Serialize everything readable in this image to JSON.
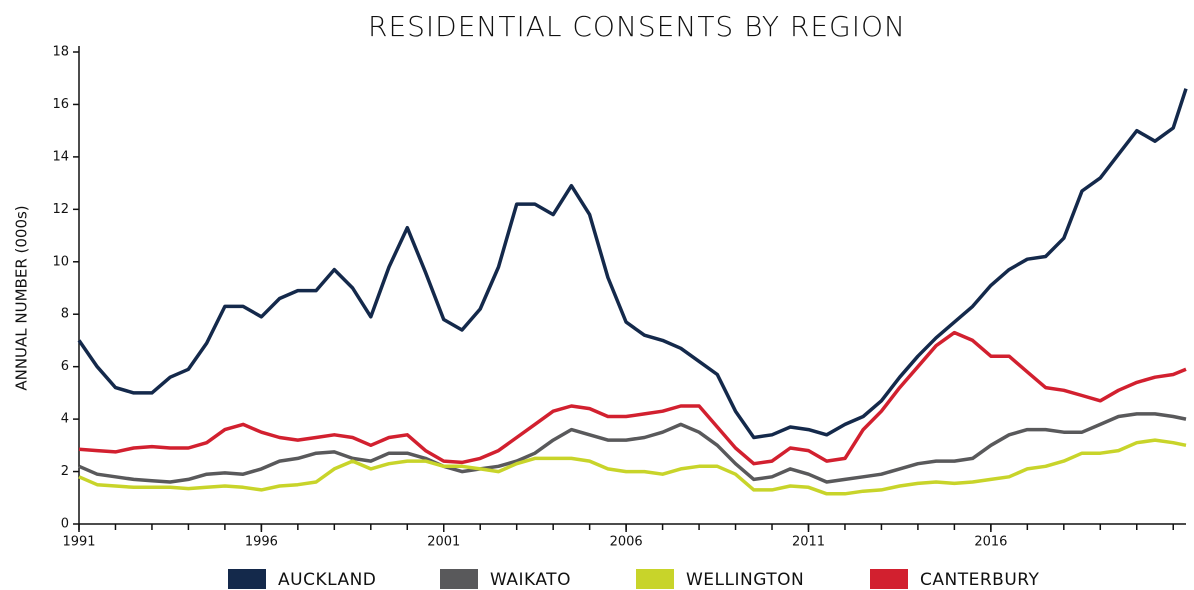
{
  "chart_data": {
    "type": "line",
    "title": "RESIDENTIAL CONSENTS BY REGION",
    "y_label": "ANNUAL NUMBER (000s)",
    "x": [
      1991,
      1991.5,
      1992,
      1992.5,
      1993,
      1993.5,
      1994,
      1994.5,
      1995,
      1995.5,
      1996,
      1996.5,
      1997,
      1997.5,
      1998,
      1998.5,
      1999,
      1999.5,
      2000,
      2000.5,
      2001,
      2001.5,
      2002,
      2002.5,
      2003,
      2003.5,
      2004,
      2004.5,
      2005,
      2005.5,
      2006,
      2006.5,
      2007,
      2007.5,
      2008,
      2008.5,
      2009,
      2009.5,
      2010,
      2010.5,
      2011,
      2011.5,
      2012,
      2012.5,
      2013,
      2013.5,
      2014,
      2014.5,
      2015,
      2015.5,
      2016,
      2016.5,
      2017,
      2017.5,
      2018,
      2018.5,
      2019,
      2019.5,
      2020,
      2020.5,
      2021,
      2021.35
    ],
    "series": [
      {
        "name": "AUCKLAND",
        "color": "#14294b",
        "values": [
          7.0,
          6.0,
          5.2,
          5.0,
          5.0,
          5.6,
          5.9,
          6.9,
          8.3,
          8.3,
          7.9,
          8.6,
          8.9,
          8.9,
          9.7,
          9.0,
          7.9,
          9.8,
          11.3,
          9.6,
          7.8,
          7.4,
          8.2,
          9.8,
          12.2,
          12.2,
          11.8,
          12.9,
          11.8,
          9.4,
          7.7,
          7.2,
          7.0,
          6.7,
          6.2,
          5.7,
          4.3,
          3.3,
          3.4,
          3.7,
          3.6,
          3.4,
          3.8,
          4.1,
          4.7,
          5.6,
          6.4,
          7.1,
          7.7,
          8.3,
          9.1,
          9.7,
          10.1,
          10.2,
          10.9,
          12.7,
          13.2,
          14.1,
          15.0,
          14.6,
          15.1,
          16.6
        ]
      },
      {
        "name": "WAIKATO",
        "color": "#59595b",
        "values": [
          2.2,
          1.9,
          1.8,
          1.7,
          1.65,
          1.6,
          1.7,
          1.9,
          1.95,
          1.9,
          2.1,
          2.4,
          2.5,
          2.7,
          2.75,
          2.5,
          2.4,
          2.7,
          2.7,
          2.5,
          2.2,
          2.0,
          2.1,
          2.2,
          2.4,
          2.7,
          3.2,
          3.6,
          3.4,
          3.2,
          3.2,
          3.3,
          3.5,
          3.8,
          3.5,
          3.0,
          2.3,
          1.7,
          1.8,
          2.1,
          1.9,
          1.6,
          1.7,
          1.8,
          1.9,
          2.1,
          2.3,
          2.4,
          2.4,
          2.5,
          3.0,
          3.4,
          3.6,
          3.6,
          3.5,
          3.5,
          3.8,
          4.1,
          4.2,
          4.2,
          4.1,
          4.0
        ]
      },
      {
        "name": "WELLINGTON",
        "color": "#c8d42a",
        "values": [
          1.8,
          1.5,
          1.45,
          1.4,
          1.4,
          1.4,
          1.35,
          1.4,
          1.45,
          1.4,
          1.3,
          1.45,
          1.5,
          1.6,
          2.1,
          2.4,
          2.1,
          2.3,
          2.4,
          2.4,
          2.2,
          2.2,
          2.1,
          2.0,
          2.3,
          2.5,
          2.5,
          2.5,
          2.4,
          2.1,
          2.0,
          2.0,
          1.9,
          2.1,
          2.2,
          2.2,
          1.9,
          1.3,
          1.3,
          1.45,
          1.4,
          1.15,
          1.15,
          1.25,
          1.3,
          1.45,
          1.55,
          1.6,
          1.55,
          1.6,
          1.7,
          1.8,
          2.1,
          2.2,
          2.4,
          2.7,
          2.7,
          2.8,
          3.1,
          3.2,
          3.1,
          3.0
        ]
      },
      {
        "name": "CANTERBURY",
        "color": "#d2202f",
        "values": [
          2.85,
          2.8,
          2.75,
          2.9,
          2.95,
          2.9,
          2.9,
          3.1,
          3.6,
          3.8,
          3.5,
          3.3,
          3.2,
          3.3,
          3.4,
          3.3,
          3.0,
          3.3,
          3.4,
          2.8,
          2.4,
          2.35,
          2.5,
          2.8,
          3.3,
          3.8,
          4.3,
          4.5,
          4.4,
          4.1,
          4.1,
          4.2,
          4.3,
          4.5,
          4.5,
          3.7,
          2.9,
          2.3,
          2.4,
          2.9,
          2.8,
          2.4,
          2.5,
          3.6,
          4.3,
          5.2,
          6.0,
          6.8,
          7.3,
          7.0,
          6.4,
          6.4,
          5.8,
          5.2,
          5.1,
          4.9,
          4.7,
          5.1,
          5.4,
          5.6,
          5.7,
          5.9
        ]
      }
    ],
    "xlim": [
      1991,
      2021.35
    ],
    "xticks": [
      1991,
      1996,
      2001,
      2006,
      2011,
      2016
    ],
    "xminorticks": [
      1991,
      1992,
      1993,
      1994,
      1995,
      1996,
      1997,
      1998,
      1999,
      2000,
      2001,
      2002,
      2003,
      2004,
      2005,
      2006,
      2007,
      2008,
      2009,
      2010,
      2011,
      2012,
      2013,
      2014,
      2015,
      2016,
      2017,
      2018,
      2019,
      2020,
      2021
    ],
    "ylim": [
      0,
      18
    ],
    "yticks": [
      0,
      2,
      4,
      6,
      8,
      10,
      12,
      14,
      16,
      18
    ],
    "legend": "bottom"
  }
}
